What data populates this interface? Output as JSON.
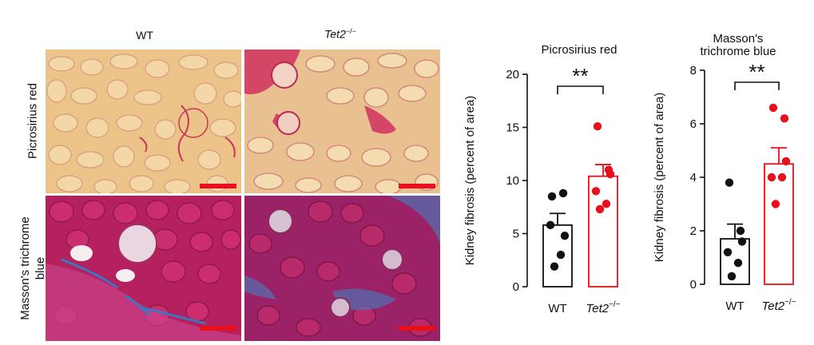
{
  "micrographs": {
    "columns": [
      "WT",
      "Tet2"
    ],
    "column_superscript": "−/−",
    "rows": [
      "Picrosirius red",
      "Masson's trichrome blue"
    ],
    "row2_lines": [
      "Masson's trichrome",
      "blue"
    ]
  },
  "colors": {
    "wt": "#111111",
    "tet2": "#e8101c",
    "sirius_bg": "#ecc48a",
    "sirius_stain": "#c8365a",
    "masson_bg": "#b5215f",
    "masson_blue": "#2f7fc9"
  },
  "chart_data": [
    {
      "type": "bar",
      "title": "Picrosirius red",
      "ylabel": "Kidney fibrosis (percent of area)",
      "categories": [
        "WT",
        "Tet2"
      ],
      "category_superscript": [
        "",
        "−/−"
      ],
      "ylim": [
        0,
        20
      ],
      "yticks": [
        0,
        5,
        10,
        15,
        20
      ],
      "means": [
        5.8,
        10.4
      ],
      "sem": [
        1.1,
        1.1
      ],
      "points": [
        [
          8.5,
          8.8,
          4.8,
          5.8,
          3.0,
          1.9
        ],
        [
          15.1,
          11.0,
          10.6,
          9.0,
          7.8,
          7.3
        ]
      ],
      "significance": "**"
    },
    {
      "type": "bar",
      "title": "Masson's trichrome blue",
      "title_lines": [
        "Masson's",
        "trichrome blue"
      ],
      "ylabel": "Kidney fibrosis (percent of area)",
      "categories": [
        "WT",
        "Tet2"
      ],
      "category_superscript": [
        "",
        "−/−"
      ],
      "ylim": [
        0,
        8
      ],
      "yticks": [
        0,
        2,
        4,
        6,
        8
      ],
      "means": [
        1.7,
        4.5
      ],
      "sem": [
        0.55,
        0.6
      ],
      "points": [
        [
          3.8,
          2.0,
          1.6,
          1.2,
          0.8,
          0.3
        ],
        [
          6.6,
          6.2,
          4.6,
          4.0,
          4.0,
          3.0
        ]
      ],
      "significance": "**"
    }
  ]
}
